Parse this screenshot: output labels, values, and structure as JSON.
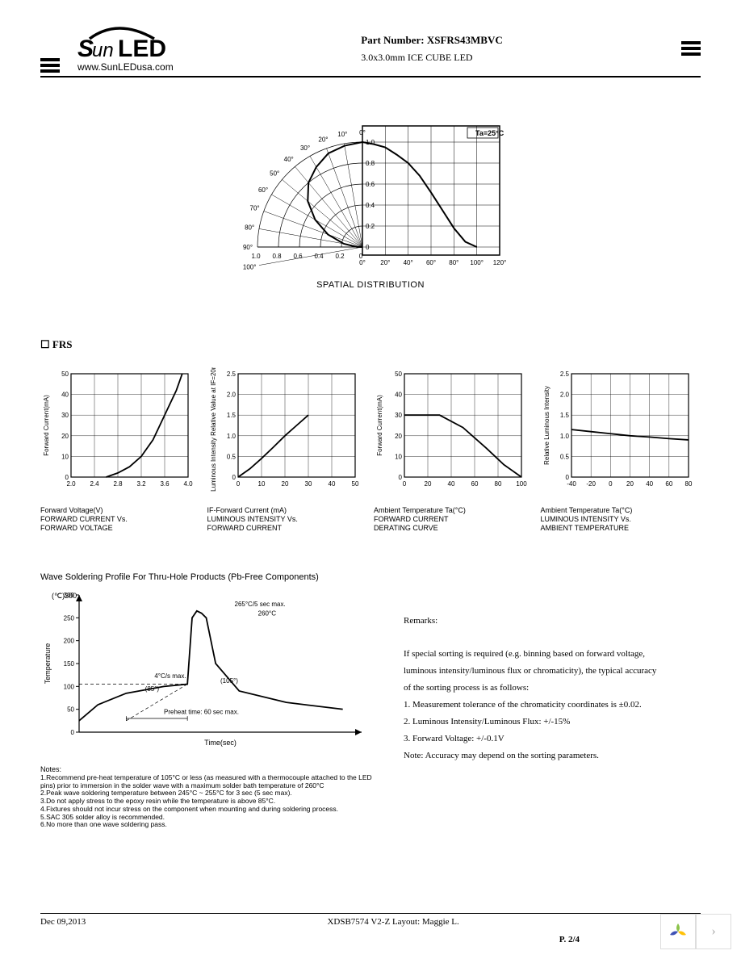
{
  "header": {
    "logo_text": "SunLED",
    "url": "www.SunLEDusa.com",
    "part_label": "Part Number:",
    "part_number": "XSFRS43MBVC",
    "subtitle": "3.0x3.0mm ICE CUBE LED"
  },
  "spatial": {
    "title": "SPATIAL DISTRIBUTION",
    "temp_label": "Ta=25°C",
    "angle_labels": [
      "0°",
      "10°",
      "20°",
      "30°",
      "40°",
      "50°",
      "60°",
      "70°",
      "80°",
      "90°",
      "100°"
    ],
    "radial_ticks": [
      "1.0",
      "0.8",
      "0.6",
      "0.4",
      "0.2",
      "0"
    ],
    "x_ticks": [
      "0°",
      "20°",
      "40°",
      "60°",
      "80°",
      "100°",
      "120°"
    ],
    "curve": [
      [
        0,
        1.0
      ],
      [
        10,
        0.98
      ],
      [
        20,
        0.95
      ],
      [
        30,
        0.88
      ],
      [
        40,
        0.8
      ],
      [
        50,
        0.68
      ],
      [
        60,
        0.52
      ],
      [
        70,
        0.35
      ],
      [
        80,
        0.18
      ],
      [
        90,
        0.05
      ],
      [
        100,
        0
      ]
    ],
    "line_color": "#000",
    "bg": "#fff",
    "font_size": 9
  },
  "frs_label": "FRS",
  "charts": [
    {
      "type": "line",
      "title_lines": [
        "Forward Voltage(V)",
        "FORWARD CURRENT Vs.",
        "FORWARD VOLTAGE"
      ],
      "ylabel": "Forward Current(mA)",
      "xlim": [
        2.0,
        4.0
      ],
      "ylim": [
        0,
        50
      ],
      "xticks": [
        "2.0",
        "2.4",
        "2.8",
        "3.2",
        "3.6",
        "4.0"
      ],
      "yticks": [
        "0",
        "10",
        "20",
        "30",
        "40",
        "50"
      ],
      "data": [
        [
          2.6,
          0
        ],
        [
          2.8,
          2
        ],
        [
          3.0,
          5
        ],
        [
          3.2,
          10
        ],
        [
          3.4,
          18
        ],
        [
          3.6,
          30
        ],
        [
          3.8,
          42
        ],
        [
          3.9,
          50
        ]
      ],
      "color": "#000",
      "grid": "#000"
    },
    {
      "type": "line",
      "title_lines": [
        "IF-Forward Current (mA)",
        "LUMINOUS INTENSITY Vs.",
        "FORWARD CURRENT"
      ],
      "ylabel": "Luminous Intensity\nRelative Value at IF=20mA",
      "xlim": [
        0,
        50
      ],
      "ylim": [
        0,
        2.5
      ],
      "xticks": [
        "0",
        "10",
        "20",
        "30",
        "40",
        "50"
      ],
      "yticks": [
        "0",
        "0.5",
        "1.0",
        "1.5",
        "2.0",
        "2.5"
      ],
      "data": [
        [
          0,
          0
        ],
        [
          5,
          0.2
        ],
        [
          10,
          0.45
        ],
        [
          15,
          0.72
        ],
        [
          20,
          1.0
        ],
        [
          25,
          1.25
        ],
        [
          30,
          1.5
        ]
      ],
      "color": "#000",
      "grid": "#000"
    },
    {
      "type": "line",
      "title_lines": [
        "Ambient Temperature Ta(°C)",
        "FORWARD CURRENT",
        "DERATING CURVE"
      ],
      "ylabel": "Forward Current(mA)",
      "xlim": [
        0,
        100
      ],
      "ylim": [
        0,
        50
      ],
      "xticks": [
        "0",
        "20",
        "40",
        "60",
        "80",
        "100"
      ],
      "yticks": [
        "0",
        "10",
        "20",
        "30",
        "40",
        "50"
      ],
      "data": [
        [
          0,
          30
        ],
        [
          25,
          30
        ],
        [
          30,
          30
        ],
        [
          50,
          24
        ],
        [
          70,
          14
        ],
        [
          85,
          6
        ],
        [
          100,
          0
        ]
      ],
      "color": "#000",
      "grid": "#000"
    },
    {
      "type": "line",
      "title_lines": [
        "Ambient Temperature Ta(°C)",
        "LUMINOUS INTENSITY Vs.",
        "AMBIENT TEMPERATURE"
      ],
      "ylabel": "Relative Luminous Intensity",
      "xlim": [
        -40,
        80
      ],
      "ylim": [
        0,
        2.5
      ],
      "xticks": [
        "-40",
        "-20",
        "0",
        "20",
        "40",
        "60",
        "80"
      ],
      "yticks": [
        "0",
        "0.5",
        "1.0",
        "1.5",
        "2.0",
        "2.5"
      ],
      "data": [
        [
          -40,
          1.15
        ],
        [
          -20,
          1.1
        ],
        [
          0,
          1.05
        ],
        [
          20,
          1.0
        ],
        [
          40,
          0.97
        ],
        [
          60,
          0.93
        ],
        [
          80,
          0.9
        ]
      ],
      "color": "#000",
      "grid": "#000"
    }
  ],
  "solder": {
    "title": "Wave Soldering Profile For Thru-Hole Products (Pb-Free Components)",
    "ylabel": "Temperature",
    "yunit": "(℃)300",
    "xlabel": "Time(sec)",
    "yticks": [
      "0",
      "50",
      "100",
      "150",
      "200",
      "250",
      "300"
    ],
    "annotations": [
      "4°C/s max.",
      "(85°)",
      "(105°)",
      "Preheat time: 60 sec max.",
      "265°C/5 sec max.",
      "260°C"
    ],
    "profile": [
      [
        0,
        25
      ],
      [
        20,
        60
      ],
      [
        50,
        85
      ],
      [
        90,
        100
      ],
      [
        115,
        105
      ],
      [
        120,
        250
      ],
      [
        125,
        265
      ],
      [
        130,
        260
      ],
      [
        135,
        250
      ],
      [
        145,
        150
      ],
      [
        170,
        90
      ],
      [
        220,
        65
      ],
      [
        280,
        50
      ]
    ],
    "color": "#000"
  },
  "notes_h": "Notes:",
  "notes": [
    "1.Recommend pre-heat temperature of 105°C or less (as measured with a thermocouple attached to the LED pins) prior to immersion in the solder wave with a maximum solder bath temperature of 260°C",
    "2.Peak wave soldering temperature between 245°C ~ 255°C for 3 sec (5 sec max).",
    "3.Do not apply stress to the epoxy resin while the temperature is above 85°C.",
    "4.Fixtures should not incur stress on the component when mounting and during soldering process.",
    "5.SAC 305 solder alloy is recommended.",
    "6.No more than one wave soldering pass."
  ],
  "remarks_h": "Remarks:",
  "remarks": [
    "If special sorting is required (e.g. binning based on forward voltage,",
    "luminous intensity/luminous flux or chromaticity), the typical accuracy",
    "of the sorting process is as follows:",
    "1. Measurement tolerance of the chromaticity coordinates is ±0.02.",
    "2. Luminous Intensity/Luminous Flux: +/-15%",
    "3. Forward Voltage: +/-0.1V",
    "Note: Accuracy may depend on the sorting parameters."
  ],
  "footer": {
    "date": "Dec 09,2013",
    "doc": "XDSB7574    V2-Z    Layout: Maggie L.",
    "page": "P. 2/4"
  }
}
